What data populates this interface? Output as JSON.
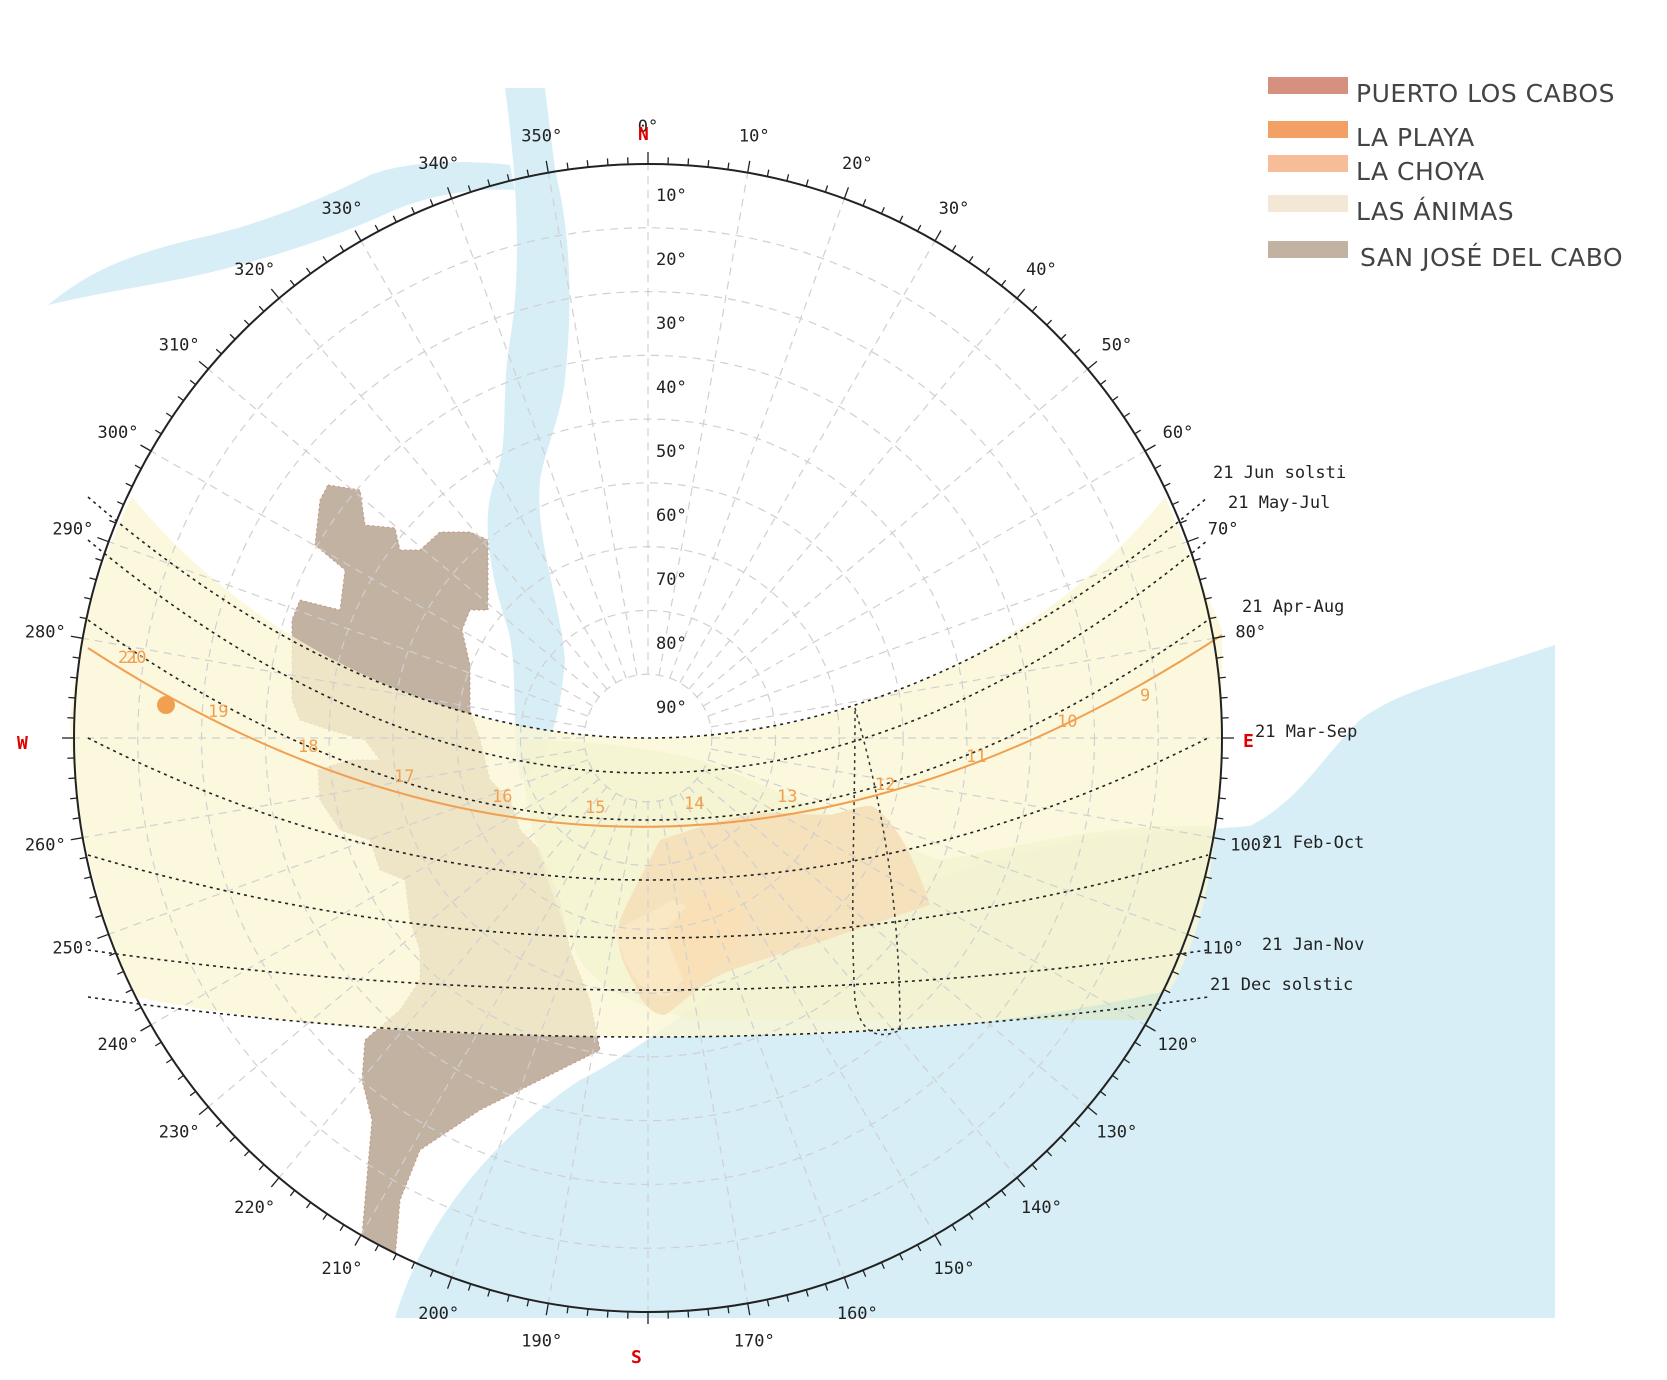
{
  "colors": {
    "sea": "#d7eef6",
    "sun_band": "#fbf5d2",
    "orange_path": "#f0a050",
    "dotted_path": "#222222",
    "cardinal": "#e00000"
  },
  "legend": [
    {
      "label": "PUERTO LOS CABOS",
      "color": "#d69080"
    },
    {
      "label": "LA PLAYA",
      "color": "#f2a064"
    },
    {
      "label": "LA CHOYA",
      "color": "#f6bd98"
    },
    {
      "label": "LAS ÁNIMAS",
      "color": "#f3e7d5"
    },
    {
      "label": "SAN JOSÉ DEL CABO",
      "color": "#c2b2a2"
    }
  ],
  "cardinals": {
    "north": "N",
    "east": "E",
    "south": "S",
    "west": "W"
  },
  "azimuth_labels": [
    "0°",
    "10°",
    "20°",
    "30°",
    "40°",
    "50°",
    "60°",
    "70°",
    "80°",
    "100°",
    "110°",
    "120°",
    "130°",
    "140°",
    "150°",
    "160°",
    "170°",
    "190°",
    "200°",
    "210°",
    "220°",
    "230°",
    "240°",
    "250°",
    "260°",
    "280°",
    "290°",
    "300°",
    "310°",
    "320°",
    "330°",
    "340°",
    "350°"
  ],
  "altitude_labels": [
    "10°",
    "20°",
    "30°",
    "40°",
    "50°",
    "60°",
    "70°",
    "80°",
    "90°"
  ],
  "sun_path_labels": [
    "21 Jun  solsti",
    "21 May-Jul",
    "21 Apr-Aug",
    "21 Mar-Sep",
    "21 Feb-Oct",
    "21 Jan-Nov",
    "21 Dec  solstic"
  ],
  "hour_labels": [
    "9",
    "10",
    "11",
    "12",
    "13",
    "14",
    "15",
    "16",
    "17",
    "18",
    "19",
    "20",
    "21"
  ]
}
